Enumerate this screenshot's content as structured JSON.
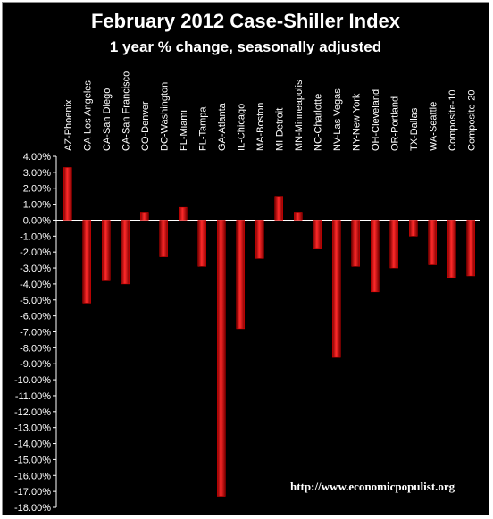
{
  "chart_data": {
    "type": "bar",
    "title": "February 2012 Case-Shiller Index",
    "subtitle": "1 year % change, seasonally adjusted",
    "categories": [
      "AZ-Phoenix",
      "CA-Los Angeles",
      "CA-San Diego",
      "CA-San Francisco",
      "CO-Denver",
      "DC-Washington",
      "FL-Miami",
      "FL-Tampa",
      "GA-Atlanta",
      "IL-Chicago",
      "MA-Boston",
      "MI-Detroit",
      "MN-Minneapolis",
      "NC-Charlotte",
      "NV-Las Vegas",
      "NY-New York",
      "OH-Cleveland",
      "OR-Portland",
      "TX-Dallas",
      "WA-Seattle",
      "Composite-10",
      "Composite-20"
    ],
    "values": [
      3.3,
      -5.2,
      -3.8,
      -4.0,
      0.5,
      -2.3,
      0.8,
      -2.9,
      -17.3,
      -6.8,
      -2.4,
      1.5,
      0.5,
      -1.8,
      -8.6,
      -2.9,
      -4.5,
      -3.0,
      -1.0,
      -2.8,
      -3.6,
      -3.5
    ],
    "yticks": [
      "4.00%",
      "3.00%",
      "2.00%",
      "1.00%",
      "0.00%",
      "-1.00%",
      "-2.00%",
      "-3.00%",
      "-4.00%",
      "-5.00%",
      "-6.00%",
      "-7.00%",
      "-8.00%",
      "-9.00%",
      "-10.00%",
      "-11.00%",
      "-12.00%",
      "-13.00%",
      "-14.00%",
      "-15.00%",
      "-16.00%",
      "-17.00%",
      "-18.00%"
    ],
    "ylim": [
      -18,
      4
    ],
    "grid": false,
    "legend": "none",
    "bar_color": "#e00000",
    "background": "#000000",
    "source": "http://www.economicpopulist.org"
  }
}
